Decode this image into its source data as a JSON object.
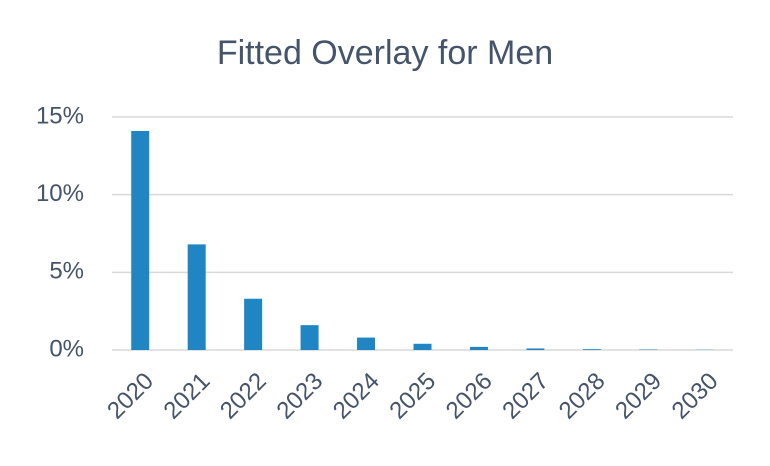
{
  "chart_data": {
    "type": "bar",
    "title": "Fitted Overlay for Men",
    "categories": [
      "2020",
      "2021",
      "2022",
      "2023",
      "2024",
      "2025",
      "2026",
      "2027",
      "2028",
      "2029",
      "2030"
    ],
    "values": [
      14.1,
      6.8,
      3.3,
      1.6,
      0.8,
      0.4,
      0.2,
      0.1,
      0.05,
      0.025,
      0.012
    ],
    "color": "#1f86c3",
    "ylim": [
      0,
      15
    ],
    "yticks": [
      {
        "value": 0,
        "label": "0%"
      },
      {
        "value": 5,
        "label": "5%"
      },
      {
        "value": 10,
        "label": "10%"
      },
      {
        "value": 15,
        "label": "15%"
      }
    ],
    "grid": true
  }
}
